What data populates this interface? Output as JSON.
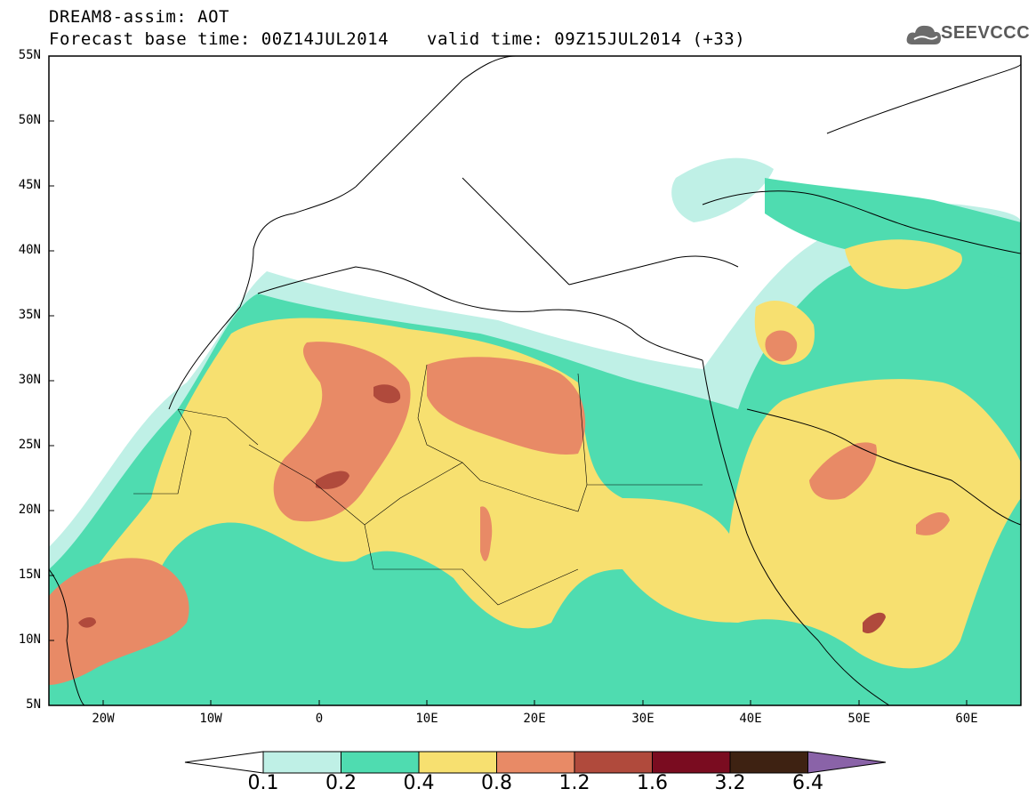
{
  "header": {
    "title": "DREAM8-assim: AOT",
    "base_time": "Forecast base time: 00Z14JUL2014",
    "valid_time": "valid time: 09Z15JUL2014 (+33)"
  },
  "logo": {
    "text": "SEEVCCC",
    "icon": "cloud-icon"
  },
  "map": {
    "lat_labels": [
      "55N",
      "50N",
      "45N",
      "40N",
      "35N",
      "30N",
      "25N",
      "20N",
      "15N",
      "10N",
      "5N"
    ],
    "lon_labels": [
      "20W",
      "10W",
      "0",
      "10E",
      "20E",
      "30E",
      "40E",
      "50E",
      "60E"
    ]
  },
  "colorbar": {
    "colors": [
      "#ffffff",
      "#bff0e6",
      "#4fdcb0",
      "#f7e070",
      "#e88a66",
      "#b04a3c",
      "#7a0c20",
      "#3e2212",
      "#8a63a8"
    ],
    "labels": [
      "0.1",
      "0.2",
      "0.4",
      "0.8",
      "1.2",
      "1.6",
      "3.2",
      "6.4"
    ]
  }
}
